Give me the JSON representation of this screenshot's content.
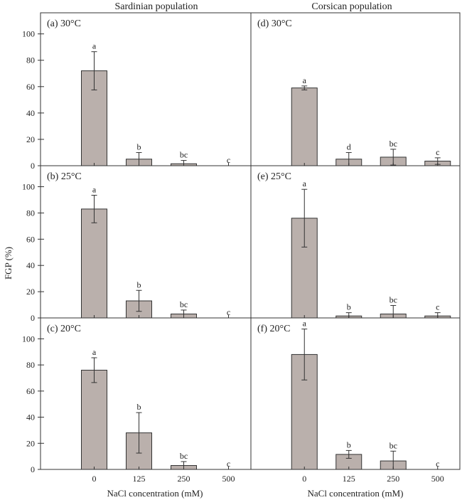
{
  "figure": {
    "column_titles": [
      "Sardinian population",
      "Corsican population"
    ],
    "ylabel": "FGP (%)",
    "xlabel": "NaCl concentration (mM)"
  },
  "chart_data": [
    {
      "type": "bar",
      "panel": "(a) 30°C",
      "column": 0,
      "row": 0,
      "categories": [
        "0",
        "125",
        "250",
        "500"
      ],
      "values": [
        72,
        5,
        1.5,
        0
      ],
      "errors": [
        14.5,
        5,
        2.5,
        0
      ],
      "sig_labels": [
        "a",
        "b",
        "bc",
        "c"
      ],
      "ylim": [
        0,
        116
      ],
      "yticks": [
        0,
        20,
        40,
        60,
        80,
        100
      ]
    },
    {
      "type": "bar",
      "panel": "(b) 25°C",
      "column": 0,
      "row": 1,
      "categories": [
        "0",
        "125",
        "250",
        "500"
      ],
      "values": [
        83,
        13,
        3,
        0
      ],
      "errors": [
        10.5,
        8,
        3,
        0
      ],
      "sig_labels": [
        "a",
        "b",
        "bc",
        "c"
      ],
      "ylim": [
        0,
        116
      ],
      "yticks": [
        0,
        20,
        40,
        60,
        80,
        100
      ]
    },
    {
      "type": "bar",
      "panel": "(c) 20°C",
      "column": 0,
      "row": 2,
      "categories": [
        "0",
        "125",
        "250",
        "500"
      ],
      "values": [
        76,
        28,
        3,
        0
      ],
      "errors": [
        9.5,
        15.5,
        3,
        0
      ],
      "sig_labels": [
        "a",
        "b",
        "bc",
        "c"
      ],
      "ylim": [
        0,
        116
      ],
      "yticks": [
        0,
        20,
        40,
        60,
        80,
        100
      ]
    },
    {
      "type": "bar",
      "panel": "(d) 30°C",
      "column": 1,
      "row": 0,
      "categories": [
        "0",
        "125",
        "250",
        "500"
      ],
      "values": [
        59,
        5,
        6.5,
        3.5
      ],
      "errors": [
        1.5,
        5,
        6,
        2.5
      ],
      "sig_labels": [
        "a",
        "d",
        "bc",
        "c"
      ],
      "ylim": [
        0,
        116
      ],
      "yticks": [
        0,
        20,
        40,
        60,
        80,
        100
      ]
    },
    {
      "type": "bar",
      "panel": "(e) 25°C",
      "column": 1,
      "row": 1,
      "categories": [
        "0",
        "125",
        "250",
        "500"
      ],
      "values": [
        76,
        1.5,
        3,
        1.5
      ],
      "errors": [
        22,
        2.5,
        6.5,
        2.5
      ],
      "sig_labels": [
        "a",
        "b",
        "bc",
        "c"
      ],
      "ylim": [
        0,
        116
      ],
      "yticks": [
        0,
        20,
        40,
        60,
        80,
        100
      ]
    },
    {
      "type": "bar",
      "panel": "(f) 20°C",
      "column": 1,
      "row": 2,
      "categories": [
        "0",
        "125",
        "250",
        "500"
      ],
      "values": [
        88,
        11.5,
        6.5,
        0
      ],
      "errors": [
        19.5,
        3,
        7.5,
        0
      ],
      "sig_labels": [
        "a",
        "b",
        "bc",
        "c"
      ],
      "ylim": [
        0,
        116
      ],
      "yticks": [
        0,
        20,
        40,
        60,
        80,
        100
      ]
    }
  ]
}
